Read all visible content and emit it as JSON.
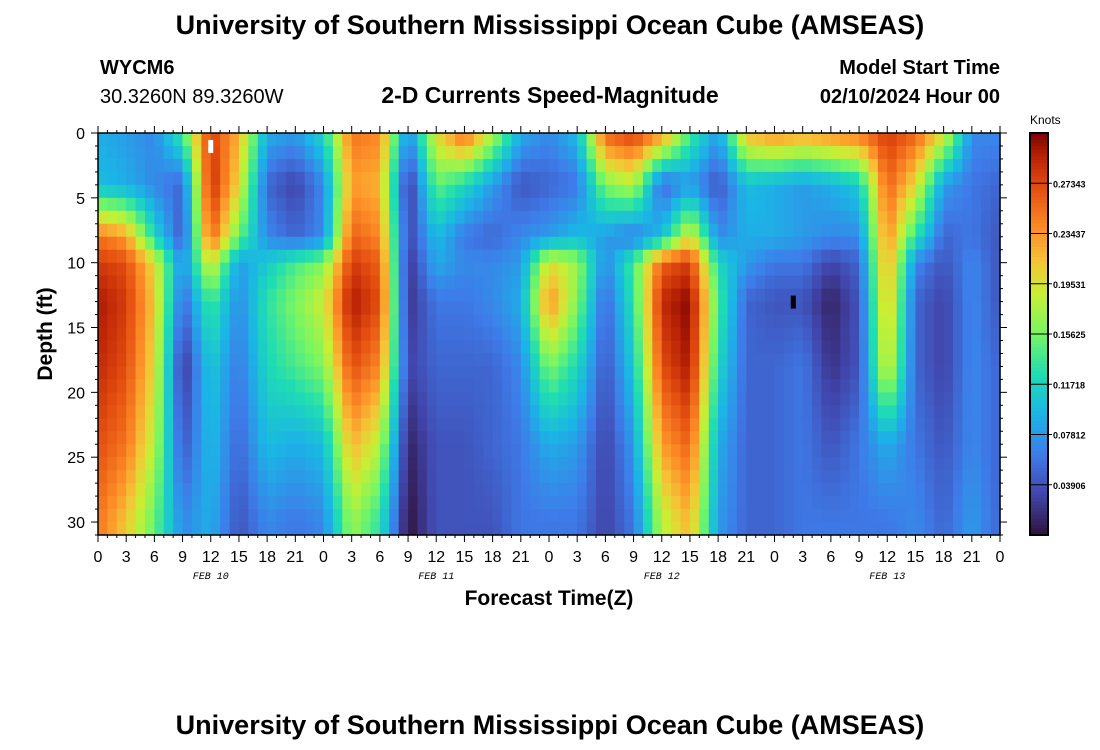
{
  "header": {
    "title": "University of Southern Mississippi Ocean Cube (AMSEAS)",
    "station": "WYCM6",
    "coords": "30.3260N  89.3260W",
    "subtitle": "2-D Currents Speed-Magnitude",
    "model_start_label": "Model Start Time",
    "model_start_value": "02/10/2024 Hour 00"
  },
  "footer": {
    "title": "University of Southern Mississippi Ocean Cube (AMSEAS)"
  },
  "chart_data": {
    "type": "heatmap",
    "title": "2-D Currents Speed-Magnitude",
    "xlabel": "Forecast Time(Z)",
    "ylabel": "Depth (ft)",
    "xlim": [
      0,
      96
    ],
    "ylim": [
      0,
      31
    ],
    "y_inverted": true,
    "x_tick_labels": [
      "0",
      "3",
      "6",
      "9",
      "12",
      "15",
      "18",
      "21",
      "0",
      "3",
      "6",
      "9",
      "12",
      "15",
      "18",
      "21",
      "0",
      "3",
      "6",
      "9",
      "12",
      "15",
      "18",
      "21",
      "0",
      "3",
      "6",
      "9",
      "12",
      "15",
      "18",
      "21",
      "0"
    ],
    "x_date_labels": [
      {
        "label": "FEB 10",
        "hour": 12
      },
      {
        "label": "FEB 11",
        "hour": 36
      },
      {
        "label": "FEB 12",
        "hour": 60
      },
      {
        "label": "FEB 13",
        "hour": 84
      }
    ],
    "y_ticks": [
      0,
      5,
      10,
      15,
      20,
      25,
      30
    ],
    "colorbar": {
      "label": "Knots",
      "range": [
        0.0,
        0.3125
      ],
      "tick_labels": [
        "0.27343",
        "0.23437",
        "0.19531",
        "0.15625",
        "0.11718",
        "0.07812",
        "0.03906"
      ],
      "tick_values": [
        0.27343,
        0.23437,
        0.19531,
        0.15625,
        0.11718,
        0.07812,
        0.03906
      ]
    },
    "markers": [
      {
        "hour": 12,
        "depth": 1,
        "color": "#ffffff"
      },
      {
        "hour": 74,
        "depth": 13,
        "color": "#000000"
      }
    ],
    "field": {
      "hours": [
        0,
        3,
        6,
        9,
        12,
        15,
        18,
        21,
        24,
        27,
        30,
        33,
        36,
        39,
        42,
        45,
        48,
        51,
        54,
        57,
        60,
        63,
        66,
        69,
        72,
        75,
        78,
        81,
        84,
        87,
        90,
        93,
        96
      ],
      "depths": [
        0,
        4,
        8,
        10,
        13,
        18,
        24,
        30
      ],
      "values_knots": [
        [
          0.09,
          0.1,
          0.25,
          0.28,
          0.3,
          0.29,
          0.27,
          0.25
        ],
        [
          0.08,
          0.09,
          0.23,
          0.27,
          0.28,
          0.27,
          0.25,
          0.21
        ],
        [
          0.07,
          0.07,
          0.12,
          0.2,
          0.21,
          0.2,
          0.18,
          0.15
        ],
        [
          0.14,
          0.05,
          0.04,
          0.07,
          0.05,
          0.02,
          0.04,
          0.07
        ],
        [
          0.28,
          0.29,
          0.26,
          0.2,
          0.14,
          0.11,
          0.1,
          0.09
        ],
        [
          0.22,
          0.2,
          0.15,
          0.08,
          0.07,
          0.06,
          0.05,
          0.04
        ],
        [
          0.09,
          0.05,
          0.07,
          0.11,
          0.13,
          0.12,
          0.1,
          0.07
        ],
        [
          0.08,
          0.03,
          0.05,
          0.14,
          0.16,
          0.14,
          0.09,
          0.06
        ],
        [
          0.12,
          0.07,
          0.07,
          0.16,
          0.19,
          0.16,
          0.1,
          0.07
        ],
        [
          0.25,
          0.23,
          0.26,
          0.28,
          0.3,
          0.27,
          0.22,
          0.17
        ],
        [
          0.24,
          0.22,
          0.24,
          0.26,
          0.27,
          0.24,
          0.18,
          0.13
        ],
        [
          0.07,
          0.02,
          0.03,
          0.02,
          0.02,
          0.03,
          0.01,
          0.0
        ],
        [
          0.2,
          0.15,
          0.1,
          0.09,
          0.06,
          0.05,
          0.04,
          0.04
        ],
        [
          0.26,
          0.12,
          0.06,
          0.07,
          0.06,
          0.05,
          0.04,
          0.04
        ],
        [
          0.18,
          0.08,
          0.05,
          0.07,
          0.07,
          0.05,
          0.05,
          0.04
        ],
        [
          0.09,
          0.04,
          0.07,
          0.08,
          0.09,
          0.07,
          0.06,
          0.06
        ],
        [
          0.07,
          0.05,
          0.08,
          0.2,
          0.24,
          0.16,
          0.09,
          0.06
        ],
        [
          0.1,
          0.06,
          0.1,
          0.17,
          0.16,
          0.12,
          0.08,
          0.06
        ],
        [
          0.26,
          0.16,
          0.08,
          0.07,
          0.05,
          0.04,
          0.03,
          0.03
        ],
        [
          0.28,
          0.18,
          0.06,
          0.14,
          0.13,
          0.11,
          0.08,
          0.06
        ],
        [
          0.24,
          0.05,
          0.1,
          0.26,
          0.29,
          0.27,
          0.23,
          0.18
        ],
        [
          0.14,
          0.08,
          0.2,
          0.28,
          0.31,
          0.3,
          0.26,
          0.22
        ],
        [
          0.08,
          0.04,
          0.07,
          0.12,
          0.14,
          0.12,
          0.09,
          0.08
        ],
        [
          0.22,
          0.1,
          0.09,
          0.08,
          0.05,
          0.05,
          0.05,
          0.05
        ],
        [
          0.24,
          0.09,
          0.09,
          0.06,
          0.04,
          0.05,
          0.05,
          0.05
        ],
        [
          0.23,
          0.08,
          0.08,
          0.06,
          0.04,
          0.06,
          0.06,
          0.06
        ],
        [
          0.24,
          0.09,
          0.07,
          0.03,
          0.01,
          0.02,
          0.04,
          0.06
        ],
        [
          0.25,
          0.11,
          0.07,
          0.05,
          0.04,
          0.04,
          0.06,
          0.06
        ],
        [
          0.28,
          0.26,
          0.24,
          0.23,
          0.22,
          0.2,
          0.09,
          0.06
        ],
        [
          0.26,
          0.2,
          0.13,
          0.07,
          0.05,
          0.05,
          0.06,
          0.07
        ],
        [
          0.2,
          0.08,
          0.05,
          0.04,
          0.03,
          0.03,
          0.04,
          0.05
        ],
        [
          0.07,
          0.06,
          0.06,
          0.07,
          0.07,
          0.07,
          0.07,
          0.08
        ],
        [
          0.07,
          0.05,
          0.04,
          0.04,
          0.04,
          0.05,
          0.05,
          0.05
        ]
      ]
    }
  }
}
